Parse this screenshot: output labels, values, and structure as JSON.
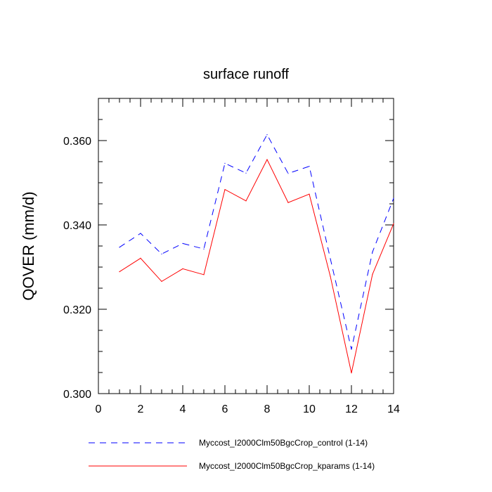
{
  "chart_data": {
    "type": "line",
    "title": "surface runoff",
    "xlabel": "",
    "ylabel": "QOVER  (mm/d)",
    "xlim": [
      0,
      14
    ],
    "ylim": [
      0.3,
      0.37
    ],
    "x_ticks": [
      0,
      2,
      4,
      6,
      8,
      10,
      12,
      14
    ],
    "x_tick_labels": [
      "0",
      "2",
      "4",
      "6",
      "8",
      "10",
      "12",
      "14"
    ],
    "y_ticks": [
      0.3,
      0.32,
      0.34,
      0.36
    ],
    "y_tick_labels": [
      "0.300",
      "0.320",
      "0.340",
      "0.360"
    ],
    "grid": false,
    "legend_position": "bottom",
    "x": [
      1,
      2,
      3,
      4,
      5,
      6,
      7,
      8,
      9,
      10,
      11,
      12,
      13,
      14
    ],
    "series": [
      {
        "name": "Myccost_I2000Clm50BgcCrop_control (1-14)",
        "color": "#0000ff",
        "dash": "dashed",
        "values": [
          0.3347,
          0.338,
          0.3331,
          0.3356,
          0.3343,
          0.3546,
          0.3523,
          0.3614,
          0.3522,
          0.3539,
          0.332,
          0.3105,
          0.3336,
          0.3463
        ]
      },
      {
        "name": "Myccost_I2000Clm50BgcCrop_kparams (1-14)",
        "color": "#ff0000",
        "dash": "solid",
        "values": [
          0.3289,
          0.3321,
          0.3266,
          0.3296,
          0.3282,
          0.3484,
          0.3457,
          0.3555,
          0.3453,
          0.3473,
          0.3278,
          0.3049,
          0.3283,
          0.3403
        ]
      }
    ]
  }
}
